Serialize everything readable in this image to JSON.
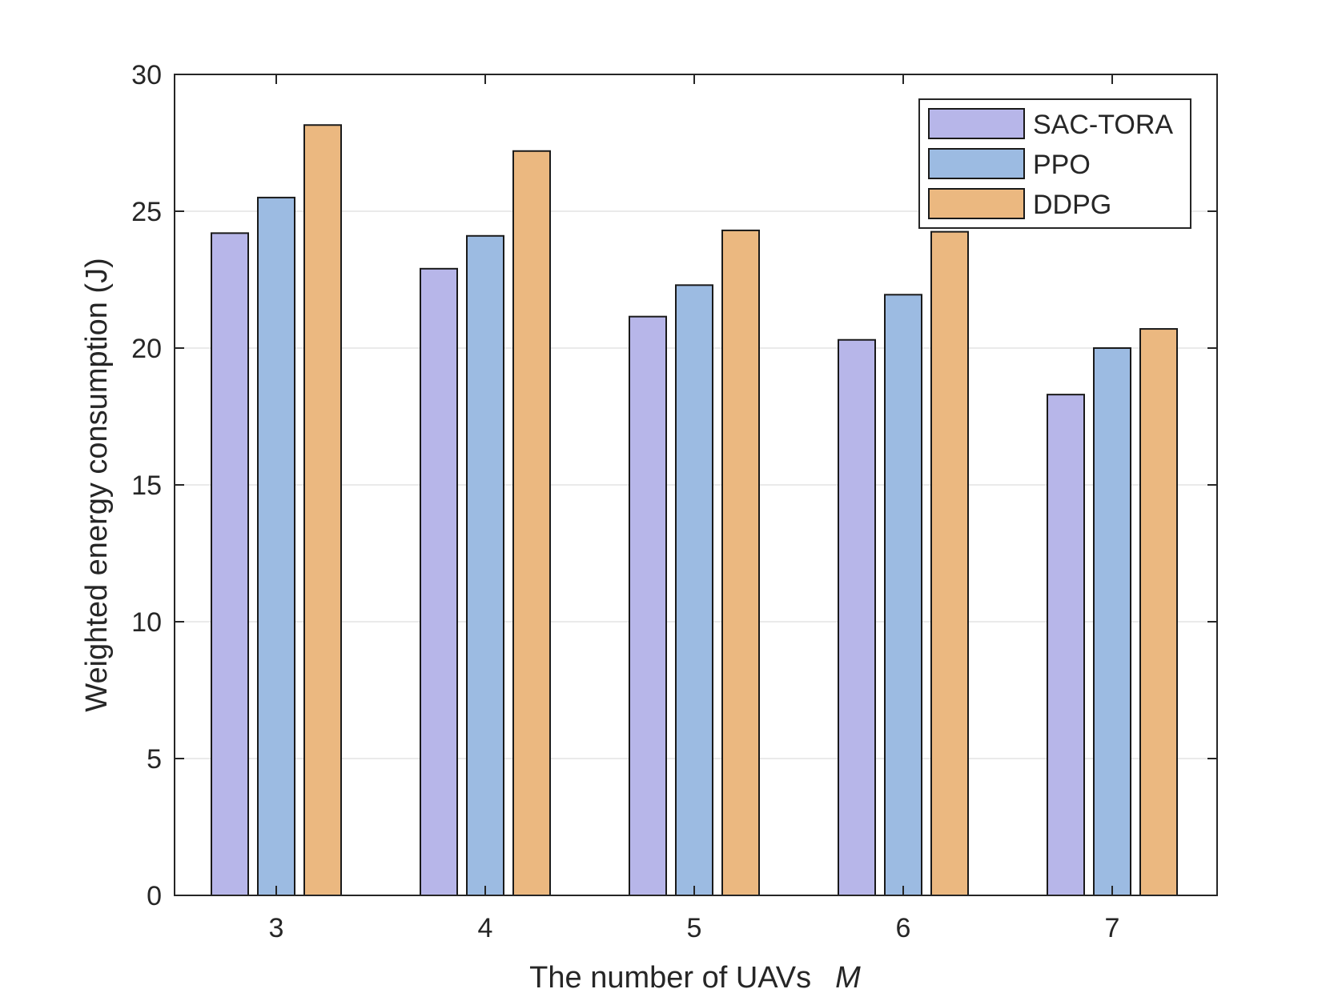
{
  "chart_data": {
    "type": "bar",
    "title": "",
    "xlabel": "The number of UAVs",
    "xlabel_var": "M",
    "ylabel": "Weighted energy consumption (J)",
    "categories": [
      "3",
      "4",
      "5",
      "6",
      "7"
    ],
    "ylim": [
      0,
      30
    ],
    "yticks": [
      0,
      5,
      10,
      15,
      20,
      25,
      30
    ],
    "grid": "horizontal",
    "legend_position": "top-right",
    "series": [
      {
        "name": "SAC-TORA",
        "color": "#b7b6e9",
        "values": [
          24.2,
          22.9,
          21.15,
          20.3,
          18.3
        ]
      },
      {
        "name": "PPO",
        "color": "#9cbbe2",
        "values": [
          25.5,
          24.1,
          22.3,
          21.95,
          20.0
        ]
      },
      {
        "name": "DDPG",
        "color": "#ebb880",
        "values": [
          28.15,
          27.2,
          24.3,
          24.25,
          20.7
        ]
      }
    ]
  }
}
